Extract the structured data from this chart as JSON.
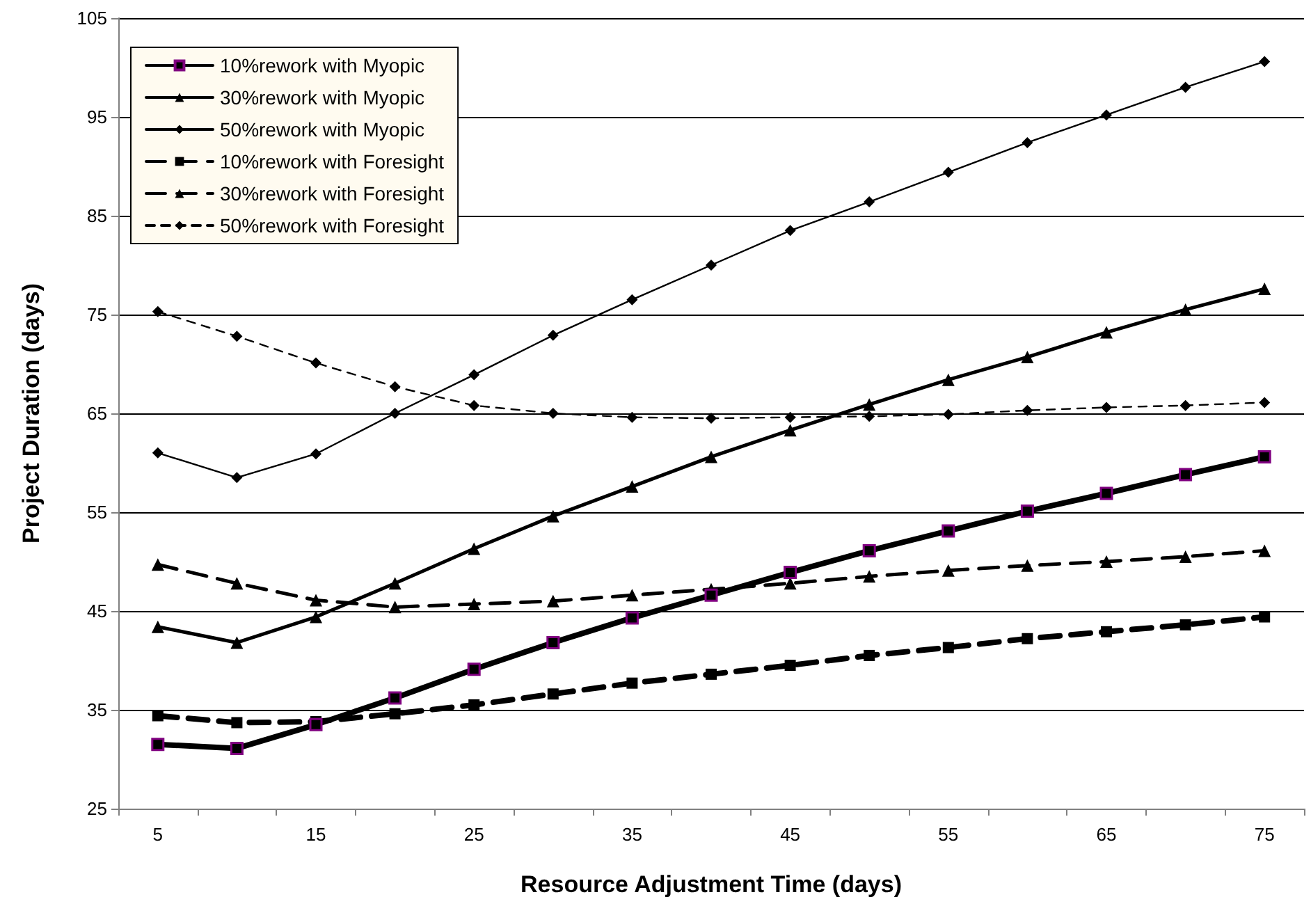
{
  "chart_data": {
    "type": "line",
    "xlabel": "Resource Adjustment Time (days)",
    "ylabel": "Project Duration (days)",
    "categories": [
      "5",
      null,
      "15",
      null,
      "25",
      null,
      "35",
      null,
      "45",
      null,
      "55",
      null,
      "65",
      null,
      "75"
    ],
    "ylim": [
      25,
      105
    ],
    "yticks": [
      25,
      35,
      45,
      55,
      65,
      75,
      85,
      95,
      105
    ],
    "grid": "y",
    "legend": "top left",
    "series": [
      {
        "name": "10%rework with Myopic",
        "color": "#000000",
        "marker": "square",
        "line_style": "solid",
        "values": [
          31.5,
          31.1,
          33.5,
          36.2,
          39.1,
          41.8,
          44.3,
          46.6,
          48.9,
          51.1,
          53.1,
          55.1,
          56.9,
          58.8,
          60.6
        ]
      },
      {
        "name": "30%rework with Myopic",
        "color": "#000000",
        "marker": "triangle",
        "line_style": "solid",
        "values": [
          43.4,
          41.8,
          44.4,
          47.8,
          51.3,
          54.6,
          57.6,
          60.6,
          63.3,
          65.9,
          68.4,
          70.7,
          73.2,
          75.5,
          77.6
        ]
      },
      {
        "name": "50%rework with Myopic",
        "color": "#000000",
        "marker": "diamond",
        "line_style": "solid",
        "values": [
          61.0,
          58.5,
          60.9,
          65.0,
          68.9,
          72.9,
          76.5,
          80.0,
          83.5,
          86.4,
          89.4,
          92.4,
          95.2,
          98.0,
          100.6
        ]
      },
      {
        "name": "10%rework with Foresight",
        "color": "#000000",
        "marker": "square",
        "line_style": "dashed",
        "values": [
          34.4,
          33.7,
          33.8,
          34.6,
          35.5,
          36.6,
          37.7,
          38.6,
          39.5,
          40.5,
          41.3,
          42.2,
          42.9,
          43.6,
          44.4
        ]
      },
      {
        "name": "30%rework with Foresight",
        "color": "#000000",
        "marker": "triangle",
        "line_style": "dashed",
        "values": [
          49.7,
          47.8,
          46.1,
          45.4,
          45.7,
          46.0,
          46.6,
          47.2,
          47.8,
          48.5,
          49.1,
          49.6,
          50.0,
          50.5,
          51.1
        ]
      },
      {
        "name": "50%rework with Foresight",
        "color": "#000000",
        "marker": "diamond",
        "line_style": "dashed",
        "values": [
          75.3,
          72.8,
          70.1,
          67.7,
          65.8,
          65.0,
          64.6,
          64.5,
          64.6,
          64.7,
          64.9,
          65.3,
          65.6,
          65.8,
          66.1
        ]
      }
    ]
  }
}
